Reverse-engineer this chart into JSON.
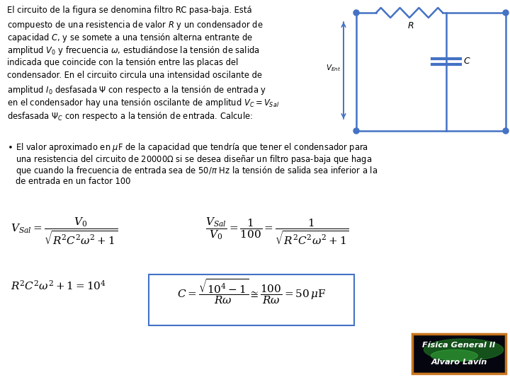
{
  "bg_color": "#ffffff",
  "text_color": "#000000",
  "circuit_color": "#4472c4",
  "formula_box_color": "#4472c4",
  "badge_text1": "Física General II",
  "badge_text2": "Alvaro Lavín",
  "badge_border": "#c87520",
  "paragraph_lines": [
    "El circuito de la figura se denomina filtro RC pasa-baja. Está",
    "compuesto de una resistencia de valor $R$ y un condensador de",
    "capacidad $C$, y se somete a una tensión alterna entrante de",
    "amplitud $V_0$ y frecuencia $\\omega$, estudiándose la tensión de salida",
    "indicada que coincide con la tensión entre las placas del",
    "condensador. En el circuito circula una intensidad oscilante de",
    "amplitud $I_0$ desfasada $\\Psi$ con respecto a la tensión de entrada y",
    "en el condensador hay una tensión oscilante de amplitud $V_C=V_{Sal}$",
    "desfasada $\\Psi_C$ con respecto a la tensión de entrada. Calcule:"
  ],
  "bullet_lines": [
    "El valor aproximado en $\\mu$F de la capacidad que tendría que tener el condensador para",
    "una resistencia del circuito de 20000$\\Omega$ si se desea diseñar un filtro pasa-baja que haga",
    "que cuando la frecuencia de entrada sea de 50/$\\pi$ Hz la tensión de salida sea inferior a la",
    "de entrada en un factor 100"
  ],
  "formula1": "$V_{Sal} = \\dfrac{V_0}{\\sqrt{R^2C^2\\omega^2+1}}$",
  "formula2": "$\\dfrac{V_{Sal}}{V_0} = \\dfrac{1}{100} = \\dfrac{1}{\\sqrt{R^2C^2\\omega^2+1}}$",
  "formula3": "$R^2C^2\\omega^2+1=10^4$",
  "formula4": "$C=\\dfrac{\\sqrt{10^4-1}}{R\\omega}\\cong\\dfrac{100}{R\\omega}=50\\,\\mu\\mathrm{F}$"
}
